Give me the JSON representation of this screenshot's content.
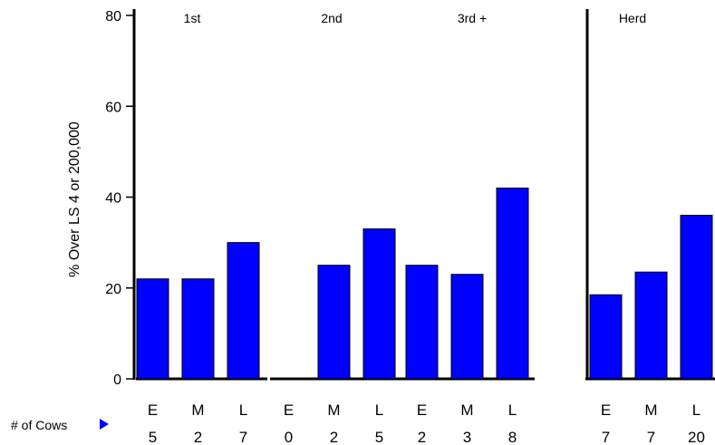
{
  "chart_data": {
    "type": "bar",
    "ylabel": "% Over  LS  4  or  200,000",
    "ylim": [
      0,
      80
    ],
    "yticks": [
      "0",
      "20",
      "40",
      "60",
      "80"
    ],
    "bar_color": "#0000ff",
    "counts_label": "# of Cows",
    "groups": [
      {
        "label": "1st",
        "categories": [
          "E",
          "M",
          "L"
        ],
        "values": [
          22,
          22,
          30
        ],
        "counts": [
          "5",
          "2",
          "7"
        ]
      },
      {
        "label": "2nd",
        "categories": [
          "E",
          "M",
          "L"
        ],
        "values": [
          0,
          25,
          33
        ],
        "counts": [
          "0",
          "2",
          "5"
        ]
      },
      {
        "label": "3rd +",
        "categories": [
          "E",
          "M",
          "L"
        ],
        "values": [
          25,
          23,
          42
        ],
        "counts": [
          "2",
          "3",
          "8"
        ]
      },
      {
        "label": "Herd",
        "categories": [
          "E",
          "M",
          "L"
        ],
        "values": [
          18.5,
          23.5,
          36
        ],
        "counts": [
          "7",
          "7",
          "20"
        ]
      }
    ]
  }
}
